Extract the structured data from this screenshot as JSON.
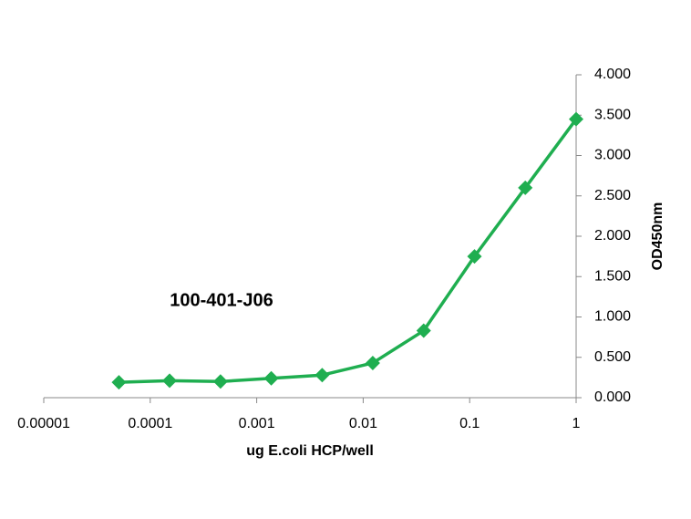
{
  "chart_data": {
    "type": "line",
    "annotation": "100-401-J06",
    "xlabel": "ug E.coli HCP/well",
    "ylabel": "OD450nm",
    "x": [
      5.08e-05,
      0.000152,
      0.000457,
      0.00137,
      0.00412,
      0.0123,
      0.037,
      0.111,
      0.333,
      1
    ],
    "series": [
      {
        "color": "#1fae50",
        "values": [
          0.19,
          0.21,
          0.2,
          0.24,
          0.28,
          0.43,
          0.83,
          1.75,
          2.6,
          3.45
        ]
      }
    ],
    "xscale": "log",
    "xlim": [
      1e-05,
      1
    ],
    "xticks": [
      {
        "value": 1e-05,
        "label": "0.00001"
      },
      0.0001,
      0.001,
      0.01,
      0.1,
      1
    ],
    "ylim": [
      0,
      4
    ],
    "yticks": [
      {
        "value": 0,
        "label": "0.000"
      },
      {
        "value": 0.5,
        "label": "0.500"
      },
      {
        "value": 1,
        "label": "1.000"
      },
      {
        "value": 1.5,
        "label": "1.500"
      },
      {
        "value": 2,
        "label": "2.000"
      },
      {
        "value": 2.5,
        "label": "2.500"
      },
      {
        "value": 3,
        "label": "3.000"
      },
      {
        "value": 3.5,
        "label": "3.500"
      },
      {
        "value": 4,
        "label": "4.000"
      }
    ],
    "grid": false
  }
}
